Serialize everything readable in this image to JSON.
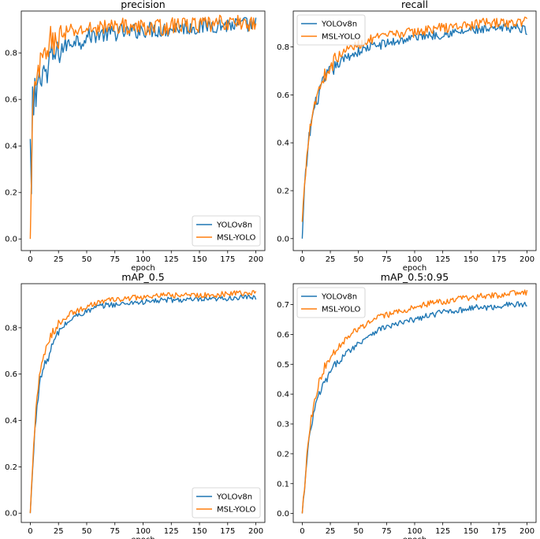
{
  "chart_data": [
    {
      "type": "line",
      "title": "precision",
      "xlabel": "epoch",
      "ylabel": "",
      "xlim": [
        -8,
        208
      ],
      "ylim": [
        -0.05,
        0.98
      ],
      "xticks": [
        "0",
        "25",
        "50",
        "75",
        "100",
        "125",
        "150",
        "175",
        "200"
      ],
      "yticks": [
        "0.0",
        "0.2",
        "0.4",
        "0.6",
        "0.8"
      ],
      "legend_position": "lower-right",
      "x": [
        0,
        1,
        2,
        3,
        4,
        5,
        6,
        7,
        8,
        10,
        12,
        15,
        18,
        20,
        25,
        30,
        35,
        40,
        45,
        50,
        60,
        70,
        80,
        90,
        100,
        110,
        120,
        130,
        140,
        150,
        160,
        170,
        180,
        190,
        200
      ],
      "series": [
        {
          "name": "YOLOv8n",
          "color": "#1f77b4",
          "values": [
            0.43,
            0.18,
            0.6,
            0.53,
            0.67,
            0.53,
            0.68,
            0.7,
            0.69,
            0.71,
            0.74,
            0.69,
            0.8,
            0.78,
            0.8,
            0.83,
            0.84,
            0.86,
            0.85,
            0.87,
            0.88,
            0.88,
            0.89,
            0.89,
            0.9,
            0.9,
            0.9,
            0.91,
            0.91,
            0.91,
            0.92,
            0.92,
            0.92,
            0.92,
            0.92
          ]
        },
        {
          "name": "MSL-YOLO",
          "color": "#ff7f0e",
          "values": [
            0.0,
            0.25,
            0.52,
            0.6,
            0.64,
            0.66,
            0.7,
            0.72,
            0.73,
            0.76,
            0.78,
            0.82,
            0.86,
            0.84,
            0.87,
            0.88,
            0.89,
            0.89,
            0.9,
            0.9,
            0.91,
            0.91,
            0.92,
            0.91,
            0.91,
            0.91,
            0.91,
            0.92,
            0.92,
            0.92,
            0.92,
            0.93,
            0.93,
            0.93,
            0.92
          ]
        }
      ]
    },
    {
      "type": "line",
      "title": "recall",
      "xlabel": "epoch",
      "ylabel": "",
      "xlim": [
        -8,
        208
      ],
      "ylim": [
        -0.05,
        0.95
      ],
      "xticks": [
        "0",
        "25",
        "50",
        "75",
        "100",
        "125",
        "150",
        "175",
        "200"
      ],
      "yticks": [
        "0.0",
        "0.2",
        "0.4",
        "0.6",
        "0.8"
      ],
      "legend_position": "upper-left",
      "x": [
        0,
        2,
        4,
        6,
        8,
        10,
        12,
        15,
        18,
        20,
        25,
        30,
        35,
        40,
        50,
        60,
        70,
        80,
        90,
        100,
        110,
        120,
        130,
        140,
        150,
        160,
        170,
        180,
        190,
        200
      ],
      "series": [
        {
          "name": "YOLOv8n",
          "color": "#1f77b4",
          "values": [
            0.0,
            0.2,
            0.32,
            0.42,
            0.48,
            0.53,
            0.56,
            0.61,
            0.64,
            0.66,
            0.7,
            0.72,
            0.74,
            0.76,
            0.78,
            0.8,
            0.81,
            0.82,
            0.83,
            0.84,
            0.85,
            0.85,
            0.86,
            0.86,
            0.87,
            0.87,
            0.87,
            0.88,
            0.88,
            0.87
          ]
        },
        {
          "name": "MSL-YOLO",
          "color": "#ff7f0e",
          "values": [
            0.07,
            0.22,
            0.35,
            0.45,
            0.5,
            0.55,
            0.58,
            0.63,
            0.66,
            0.68,
            0.72,
            0.75,
            0.77,
            0.79,
            0.81,
            0.83,
            0.84,
            0.85,
            0.86,
            0.86,
            0.87,
            0.88,
            0.88,
            0.89,
            0.89,
            0.9,
            0.9,
            0.9,
            0.9,
            0.91
          ]
        }
      ]
    },
    {
      "type": "line",
      "title": "mAP_0.5",
      "xlabel": "epoch",
      "ylabel": "",
      "xlim": [
        -8,
        208
      ],
      "ylim": [
        -0.04,
        0.99
      ],
      "xticks": [
        "0",
        "25",
        "50",
        "75",
        "100",
        "125",
        "150",
        "175",
        "200"
      ],
      "yticks": [
        "0.0",
        "0.2",
        "0.4",
        "0.6",
        "0.8"
      ],
      "legend_position": "lower-right",
      "x": [
        0,
        2,
        4,
        6,
        8,
        10,
        12,
        15,
        18,
        20,
        25,
        30,
        35,
        40,
        50,
        60,
        70,
        80,
        90,
        100,
        120,
        140,
        160,
        180,
        200
      ],
      "series": [
        {
          "name": "YOLOv8n",
          "color": "#1f77b4",
          "values": [
            0.0,
            0.18,
            0.35,
            0.47,
            0.55,
            0.6,
            0.63,
            0.66,
            0.7,
            0.73,
            0.78,
            0.81,
            0.83,
            0.85,
            0.87,
            0.89,
            0.9,
            0.9,
            0.91,
            0.91,
            0.92,
            0.92,
            0.92,
            0.93,
            0.93
          ]
        },
        {
          "name": "MSL-YOLO",
          "color": "#ff7f0e",
          "values": [
            0.0,
            0.2,
            0.38,
            0.5,
            0.58,
            0.63,
            0.68,
            0.72,
            0.76,
            0.78,
            0.82,
            0.84,
            0.86,
            0.87,
            0.89,
            0.91,
            0.92,
            0.92,
            0.93,
            0.93,
            0.94,
            0.94,
            0.94,
            0.95,
            0.95
          ]
        }
      ]
    },
    {
      "type": "line",
      "title": "mAP_0.5:0.95",
      "xlabel": "epoch",
      "ylabel": "",
      "xlim": [
        -8,
        208
      ],
      "ylim": [
        -0.03,
        0.77
      ],
      "xticks": [
        "0",
        "25",
        "50",
        "75",
        "100",
        "125",
        "150",
        "175",
        "200"
      ],
      "yticks": [
        "0.0",
        "0.1",
        "0.2",
        "0.3",
        "0.4",
        "0.5",
        "0.6",
        "0.7"
      ],
      "legend_position": "upper-left",
      "x": [
        0,
        2,
        4,
        6,
        8,
        10,
        12,
        15,
        18,
        20,
        25,
        30,
        35,
        40,
        50,
        60,
        70,
        80,
        90,
        100,
        110,
        120,
        130,
        140,
        150,
        160,
        170,
        180,
        190,
        200
      ],
      "series": [
        {
          "name": "YOLOv8n",
          "color": "#1f77b4",
          "values": [
            0.0,
            0.08,
            0.17,
            0.24,
            0.29,
            0.33,
            0.36,
            0.4,
            0.42,
            0.44,
            0.47,
            0.5,
            0.52,
            0.54,
            0.57,
            0.6,
            0.62,
            0.63,
            0.64,
            0.65,
            0.66,
            0.67,
            0.68,
            0.68,
            0.69,
            0.69,
            0.69,
            0.7,
            0.7,
            0.7
          ]
        },
        {
          "name": "MSL-YOLO",
          "color": "#ff7f0e",
          "values": [
            0.0,
            0.09,
            0.19,
            0.27,
            0.32,
            0.36,
            0.4,
            0.44,
            0.47,
            0.49,
            0.53,
            0.55,
            0.57,
            0.59,
            0.62,
            0.64,
            0.66,
            0.67,
            0.68,
            0.69,
            0.7,
            0.71,
            0.71,
            0.72,
            0.72,
            0.73,
            0.73,
            0.73,
            0.74,
            0.74
          ]
        }
      ]
    }
  ]
}
